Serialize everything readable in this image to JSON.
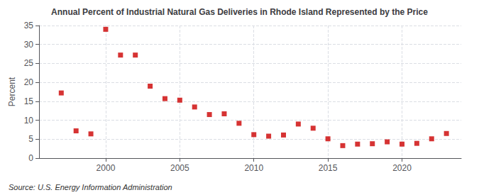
{
  "chart_data": {
    "type": "scatter",
    "title": "Annual Percent of Industrial Natural Gas Deliveries in Rhode Island Represented by the Price",
    "ylabel": "Percent",
    "annotations": [
      "Source: U.S. Energy Information Administration"
    ],
    "x": [
      1997,
      1998,
      1999,
      2000,
      2001,
      2002,
      2003,
      2004,
      2005,
      2006,
      2007,
      2008,
      2009,
      2010,
      2011,
      2012,
      2013,
      2014,
      2015,
      2016,
      2017,
      2018,
      2019,
      2020,
      2021,
      2022,
      2023
    ],
    "values": [
      17.2,
      7.2,
      6.4,
      34.0,
      27.2,
      27.2,
      19.0,
      15.7,
      15.3,
      13.5,
      11.5,
      11.7,
      9.2,
      6.2,
      5.8,
      6.1,
      9.0,
      7.9,
      5.1,
      3.3,
      3.7,
      3.8,
      4.3,
      3.7,
      3.9,
      5.1,
      6.5
    ],
    "color": "#cc0000",
    "marker": "square",
    "xlim": [
      1995.5,
      2024
    ],
    "xticks": [
      2000,
      2005,
      2010,
      2015,
      2020
    ],
    "ylim": [
      0,
      35
    ],
    "yticks": [
      0,
      5,
      10,
      15,
      20,
      25,
      30,
      35
    ],
    "grid": true
  }
}
